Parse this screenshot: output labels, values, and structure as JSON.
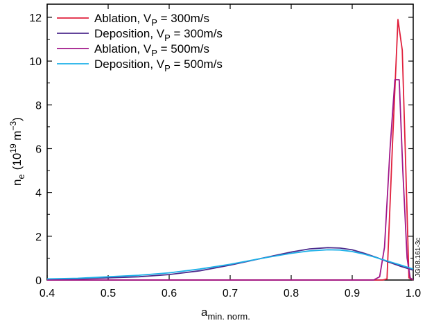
{
  "chart_data": {
    "type": "line",
    "xlabel": "a",
    "xlabel_sub": "min. norm.",
    "ylabel": "n",
    "ylabel_sub": "e",
    "ylabel_unit_pre": "(10",
    "ylabel_unit_exp1": "19",
    "ylabel_unit_mid": " m",
    "ylabel_unit_exp2": "−3",
    "ylabel_unit_post": ")",
    "xlim": [
      0.4,
      1.0
    ],
    "ylim": [
      0,
      12.6
    ],
    "xticks": [
      0.4,
      0.5,
      0.6,
      0.7,
      0.8,
      0.9,
      1.0
    ],
    "xtick_labels": [
      "0.4",
      "0.5",
      "0.6",
      "0.7",
      "0.8",
      "0.9",
      "1.0"
    ],
    "yticks": [
      0,
      2,
      4,
      6,
      8,
      10,
      12
    ],
    "ytick_labels": [
      "0",
      "2",
      "4",
      "6",
      "8",
      "10",
      "12"
    ],
    "grid": false,
    "legend_position": "top-left",
    "annotation": "JG08.161-3c",
    "series": [
      {
        "name": "Ablation, V",
        "name_sub": "P",
        "name_suffix": " = 300m/s",
        "color": "#e0203c",
        "x": [
          0.4,
          0.5,
          0.6,
          0.7,
          0.8,
          0.9,
          0.95,
          0.957,
          0.966,
          0.975,
          0.982,
          0.988,
          0.993,
          1.0
        ],
        "y": [
          0,
          0,
          0,
          0,
          0,
          0,
          0,
          0.05,
          6.2,
          11.9,
          10.5,
          5.0,
          0.1,
          0
        ]
      },
      {
        "name": "Deposition, V",
        "name_sub": "P",
        "name_suffix": " = 300m/s",
        "color": "#4b2a8c",
        "x": [
          0.4,
          0.45,
          0.5,
          0.55,
          0.6,
          0.65,
          0.7,
          0.75,
          0.8,
          0.83,
          0.86,
          0.88,
          0.9,
          0.92,
          0.94,
          0.96,
          0.98,
          1.0
        ],
        "y": [
          0.03,
          0.05,
          0.1,
          0.15,
          0.25,
          0.42,
          0.68,
          0.98,
          1.28,
          1.42,
          1.48,
          1.46,
          1.38,
          1.22,
          1.03,
          0.82,
          0.62,
          0.45
        ]
      },
      {
        "name": "Ablation, V",
        "name_sub": "P",
        "name_suffix": " = 500m/s",
        "color": "#a0168a",
        "x": [
          0.4,
          0.5,
          0.6,
          0.7,
          0.8,
          0.9,
          0.935,
          0.945,
          0.953,
          0.962,
          0.97,
          0.977,
          0.983,
          0.99,
          0.995,
          1.0
        ],
        "y": [
          0,
          0,
          0,
          0,
          0,
          0,
          0,
          0.15,
          1.5,
          6.0,
          9.15,
          9.15,
          5.0,
          1.0,
          0.1,
          0
        ]
      },
      {
        "name": "Deposition, V",
        "name_sub": "P",
        "name_suffix": " = 500m/s",
        "color": "#1cb0e8",
        "x": [
          0.4,
          0.45,
          0.5,
          0.55,
          0.6,
          0.65,
          0.7,
          0.75,
          0.8,
          0.83,
          0.86,
          0.88,
          0.9,
          0.92,
          0.94,
          0.96,
          0.98,
          1.0
        ],
        "y": [
          0.05,
          0.08,
          0.15,
          0.22,
          0.33,
          0.5,
          0.72,
          0.98,
          1.22,
          1.33,
          1.38,
          1.37,
          1.3,
          1.18,
          1.02,
          0.85,
          0.68,
          0.5
        ]
      }
    ]
  }
}
